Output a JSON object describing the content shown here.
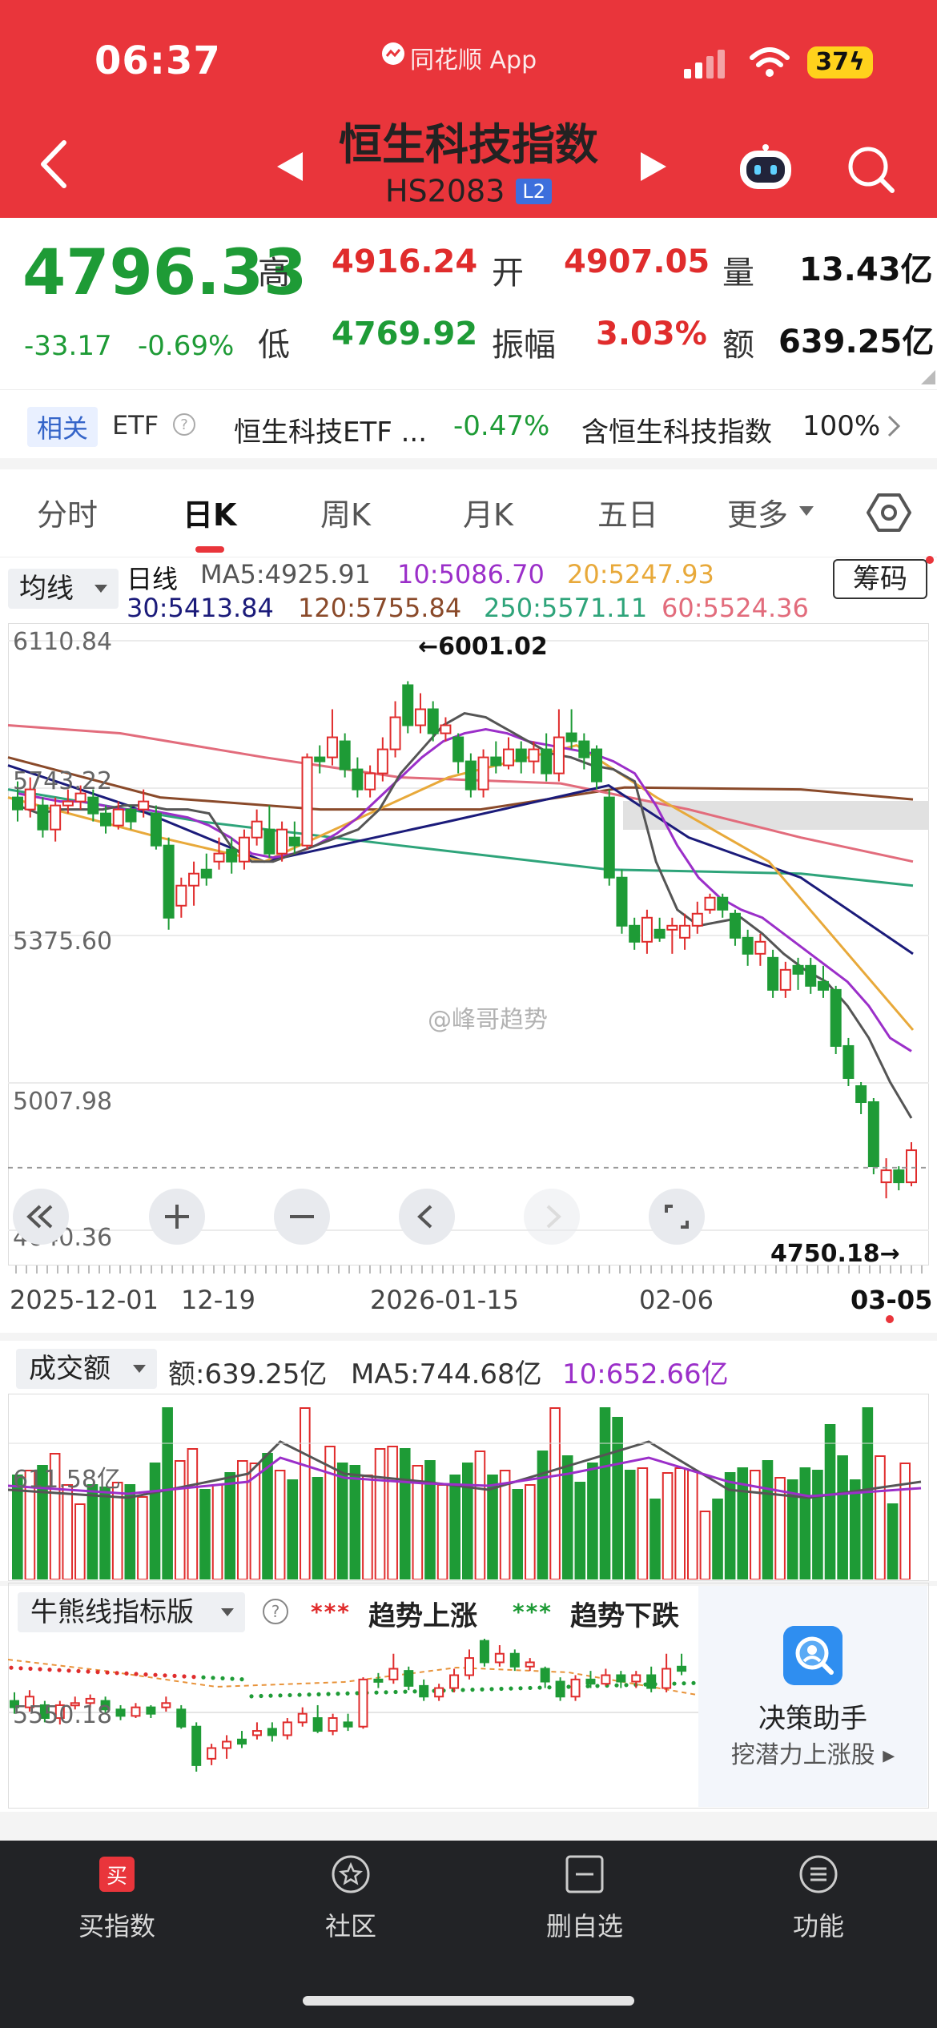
{
  "status_bar": {
    "time": "06:37",
    "app_label": "同花顺 App",
    "battery": "37"
  },
  "header": {
    "stock_name": "恒生科技指数",
    "stock_code": "HS2083",
    "level_badge": "L2"
  },
  "quote": {
    "price": "4796.33",
    "change": "-33.17",
    "change_pct": "-0.69%",
    "high_label": "高",
    "high": "4916.24",
    "open_label": "开",
    "open": "4907.05",
    "volume_label": "量",
    "volume": "13.43亿",
    "low_label": "低",
    "low": "4769.92",
    "amplitude_label": "振幅",
    "amplitude": "3.03%",
    "turnover_label": "额",
    "turnover": "639.25亿"
  },
  "related": {
    "tag": "相关",
    "etf_label": "ETF",
    "etf_name": "恒生科技ETF ...",
    "etf_pct": "-0.47%",
    "contain_label": "含恒生科技指数",
    "contain_pct": "100%"
  },
  "tabs": [
    "分时",
    "日K",
    "周K",
    "月K",
    "五日",
    "更多"
  ],
  "active_tab": "日K",
  "ma_legend": {
    "dropdown": "均线",
    "kind": "日线",
    "ma5": "MA5:4925.91",
    "ma10": "10:5086.70",
    "ma20": "20:5247.93",
    "ma30": "30:5413.84",
    "ma120": "120:5755.84",
    "ma250": "250:5571.11",
    "ma60": "60:5524.36",
    "chips_button": "筹码"
  },
  "kline_axis": {
    "labels": [
      "6110.84",
      "5743.22",
      "5375.60",
      "5007.98",
      "4640.36"
    ],
    "dates": [
      "2025-12-01",
      "12-19",
      "2026-01-15",
      "02-06",
      "03-05"
    ],
    "high_note": "←6001.02",
    "low_note": "4750.18→"
  },
  "watermark": "@峰哥趋势",
  "volume_legend": {
    "dropdown": "成交额",
    "amount": "额:639.25亿",
    "ma5": "MA5:744.68亿",
    "ma10": "10:652.66亿",
    "axis_label": "611.58亿"
  },
  "bull_bear": {
    "dropdown": "牛熊线指标版",
    "up_marker": "***",
    "up_label": "趋势上涨",
    "down_marker": "***",
    "down_label": "趋势下跌",
    "axis_label": "5550.18"
  },
  "assistant": {
    "title": "决策助手",
    "subtitle": "挖潜力上涨股 ▸"
  },
  "bottom_nav": [
    "买指数",
    "社区",
    "删自选",
    "功能"
  ],
  "colors": {
    "brand_red": "#e9353b",
    "up_red": "#e02c2c",
    "down_green": "#1e9b36",
    "ma5": "#555555",
    "ma10": "#9b2fc9",
    "ma20": "#e8a93a",
    "ma30": "#1b1b7a",
    "ma120": "#8a4a2a",
    "ma250": "#2ea47a",
    "ma60": "#e26c7c"
  },
  "chart_data": {
    "type": "candlestick",
    "y_axis_ticks": [
      6110.84,
      5743.22,
      5375.6,
      5007.98,
      4640.36
    ],
    "y_range": [
      4640.36,
      6110.84
    ],
    "period_high": 6001.02,
    "period_low": 4750.18,
    "x_dates": [
      "2025-12-01",
      "12-19",
      "2026-01-15",
      "02-06",
      "03-05"
    ],
    "candles": [
      [
        5720,
        5690,
        5760,
        5660
      ],
      [
        5690,
        5740,
        5770,
        5670
      ],
      [
        5700,
        5640,
        5720,
        5620
      ],
      [
        5640,
        5700,
        5720,
        5610
      ],
      [
        5700,
        5710,
        5740,
        5680
      ],
      [
        5710,
        5730,
        5750,
        5690
      ],
      [
        5720,
        5680,
        5740,
        5660
      ],
      [
        5680,
        5650,
        5700,
        5630
      ],
      [
        5650,
        5690,
        5710,
        5640
      ],
      [
        5690,
        5660,
        5700,
        5640
      ],
      [
        5690,
        5710,
        5740,
        5670
      ],
      [
        5680,
        5600,
        5700,
        5590
      ],
      [
        5600,
        5420,
        5620,
        5390
      ],
      [
        5450,
        5500,
        5520,
        5420
      ],
      [
        5500,
        5530,
        5560,
        5450
      ],
      [
        5540,
        5520,
        5580,
        5500
      ],
      [
        5560,
        5580,
        5620,
        5540
      ],
      [
        5590,
        5560,
        5620,
        5530
      ],
      [
        5560,
        5620,
        5640,
        5540
      ],
      [
        5620,
        5660,
        5690,
        5600
      ],
      [
        5640,
        5580,
        5700,
        5570
      ],
      [
        5580,
        5640,
        5660,
        5560
      ],
      [
        5620,
        5600,
        5660,
        5580
      ],
      [
        5600,
        5820,
        5830,
        5590
      ],
      [
        5820,
        5810,
        5850,
        5780
      ],
      [
        5820,
        5870,
        5940,
        5800
      ],
      [
        5860,
        5790,
        5880,
        5770
      ],
      [
        5790,
        5740,
        5820,
        5720
      ],
      [
        5740,
        5780,
        5800,
        5720
      ],
      [
        5780,
        5840,
        5870,
        5760
      ],
      [
        5840,
        5920,
        5960,
        5820
      ],
      [
        6000,
        5900,
        6010,
        5880
      ],
      [
        5900,
        5940,
        5980,
        5880
      ],
      [
        5940,
        5880,
        5960,
        5860
      ],
      [
        5880,
        5900,
        5920,
        5860
      ],
      [
        5870,
        5810,
        5880,
        5780
      ],
      [
        5810,
        5740,
        5830,
        5720
      ],
      [
        5740,
        5820,
        5840,
        5720
      ],
      [
        5820,
        5800,
        5860,
        5780
      ],
      [
        5800,
        5840,
        5870,
        5790
      ],
      [
        5840,
        5810,
        5860,
        5780
      ],
      [
        5810,
        5840,
        5860,
        5780
      ],
      [
        5840,
        5780,
        5880,
        5760
      ],
      [
        5780,
        5870,
        5940,
        5760
      ],
      [
        5880,
        5860,
        5940,
        5840
      ],
      [
        5860,
        5820,
        5880,
        5790
      ],
      [
        5840,
        5760,
        5850,
        5740
      ],
      [
        5720,
        5520,
        5740,
        5500
      ],
      [
        5520,
        5400,
        5540,
        5380
      ],
      [
        5400,
        5360,
        5420,
        5340
      ],
      [
        5360,
        5420,
        5440,
        5330
      ],
      [
        5390,
        5370,
        5420,
        5360
      ],
      [
        5390,
        5400,
        5420,
        5330
      ],
      [
        5370,
        5400,
        5430,
        5340
      ],
      [
        5400,
        5430,
        5460,
        5380
      ],
      [
        5440,
        5470,
        5480,
        5430
      ],
      [
        5470,
        5440,
        5480,
        5420
      ],
      [
        5430,
        5370,
        5440,
        5350
      ],
      [
        5370,
        5330,
        5390,
        5300
      ],
      [
        5330,
        5360,
        5380,
        5300
      ],
      [
        5320,
        5240,
        5340,
        5220
      ],
      [
        5240,
        5290,
        5310,
        5220
      ],
      [
        5300,
        5280,
        5320,
        5240
      ],
      [
        5300,
        5250,
        5320,
        5230
      ],
      [
        5260,
        5240,
        5300,
        5220
      ],
      [
        5240,
        5100,
        5250,
        5080
      ],
      [
        5100,
        5020,
        5120,
        5000
      ],
      [
        5000,
        4960,
        5010,
        4930
      ],
      [
        4960,
        4800,
        4970,
        4780
      ],
      [
        4760,
        4790,
        4820,
        4720
      ],
      [
        4790,
        4760,
        4800,
        4740
      ],
      [
        4760,
        4840,
        4860,
        4750
      ]
    ],
    "ma_lines": {
      "ma5": [
        5700,
        5680,
        5690,
        5690,
        5690,
        5700,
        5700,
        5690,
        5690,
        5680,
        5600,
        5560,
        5560,
        5580,
        5600,
        5620,
        5640,
        5690,
        5780,
        5840,
        5900,
        5930,
        5920,
        5890,
        5860,
        5830,
        5820,
        5800,
        5790,
        5760,
        5560,
        5440,
        5400,
        5410,
        5420,
        5380,
        5330,
        5290,
        5260,
        5200,
        5120,
        5010,
        4920
      ],
      "ma10": [
        5730,
        5720,
        5710,
        5710,
        5700,
        5690,
        5690,
        5680,
        5670,
        5650,
        5620,
        5580,
        5570,
        5580,
        5600,
        5630,
        5670,
        5720,
        5770,
        5820,
        5860,
        5880,
        5890,
        5880,
        5860,
        5850,
        5840,
        5830,
        5810,
        5780,
        5700,
        5600,
        5520,
        5470,
        5440,
        5420,
        5380,
        5340,
        5300,
        5260,
        5200,
        5120,
        5087
      ]
    }
  }
}
